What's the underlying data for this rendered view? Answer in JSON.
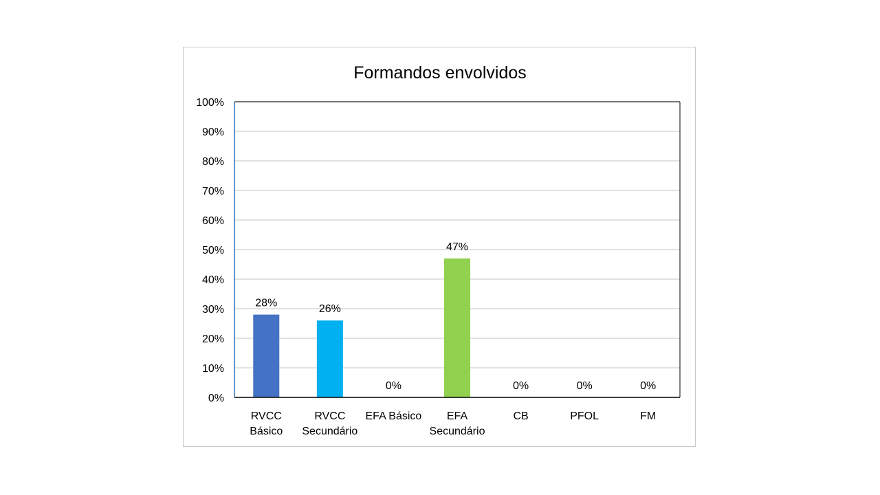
{
  "chart_data": {
    "type": "bar",
    "title": "Formandos envolvidos",
    "xlabel": "",
    "ylabel": "",
    "categories": [
      [
        "RVCC",
        "Básico"
      ],
      [
        "RVCC",
        "Secundário"
      ],
      [
        "EFA Básico"
      ],
      [
        "EFA",
        "Secundário"
      ],
      [
        "CB"
      ],
      [
        "PFOL"
      ],
      [
        "FM"
      ]
    ],
    "values": [
      28,
      26,
      0,
      47,
      0,
      0,
      0
    ],
    "data_labels": [
      "28%",
      "26%",
      "0%",
      "47%",
      "0%",
      "0%",
      "0%"
    ],
    "bar_colors": [
      "#4472C4",
      "#00B0F0",
      "#00B0F0",
      "#92D050",
      "#92D050",
      "#92D050",
      "#92D050"
    ],
    "ylim": [
      0,
      100
    ],
    "yticks": [
      0,
      10,
      20,
      30,
      40,
      50,
      60,
      70,
      80,
      90,
      100
    ],
    "ytick_labels": [
      "0%",
      "10%",
      "20%",
      "30%",
      "40%",
      "50%",
      "60%",
      "70%",
      "80%",
      "90%",
      "100%"
    ],
    "grid": true,
    "legend": "none"
  }
}
